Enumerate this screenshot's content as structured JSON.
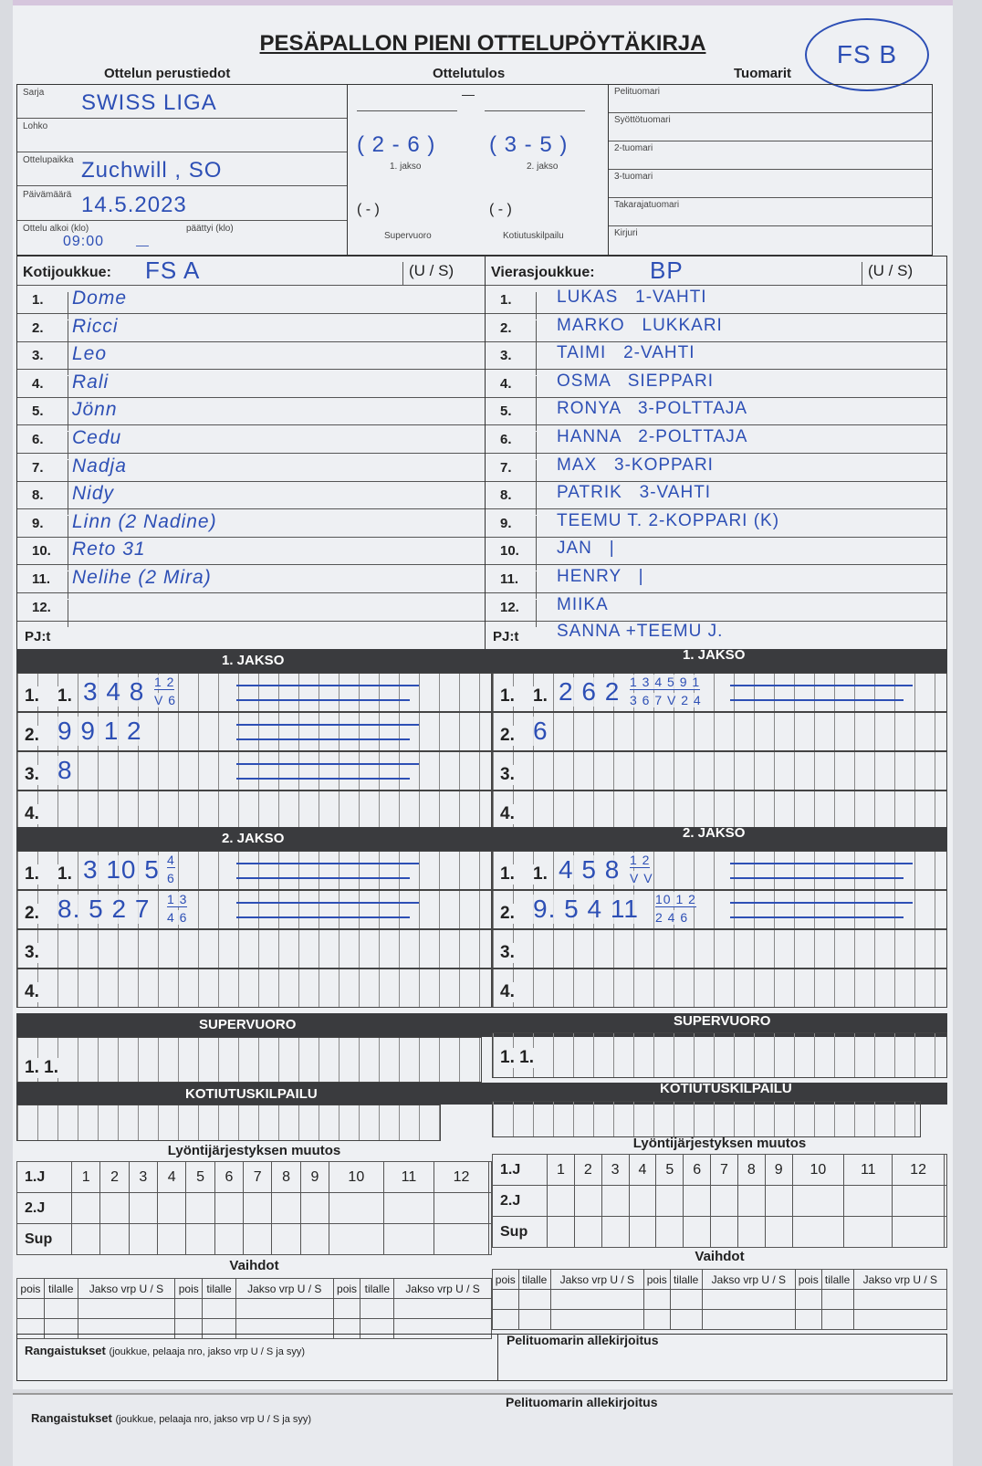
{
  "title": "PESÄPALLON PIENI OTTELUPÖYTÄKIRJA",
  "sections": {
    "basic": "Ottelun perustiedot",
    "result": "Ottelutulos",
    "referees": "Tuomarit"
  },
  "referee_team": "FS B",
  "basic_fields": [
    {
      "label": "Sarja",
      "value": "SWISS LIGA"
    },
    {
      "label": "Lohko",
      "value": ""
    },
    {
      "label": "Ottelupaikka",
      "value": "Zuchwill , SO"
    },
    {
      "label": "Päivämäärä",
      "value": "14.5.2023"
    },
    {
      "label": "Ottelu alkoi (klo)",
      "value": "09:00",
      "label2": "päättyi (klo)",
      "value2": "—"
    }
  ],
  "result": {
    "total": "—",
    "periods": [
      {
        "label": "1. jakso",
        "score": "( 2 - 6 )"
      },
      {
        "label": "2. jakso",
        "score": "( 3 - 5 )"
      }
    ],
    "extra": [
      {
        "label": "Supervuoro",
        "score": "(  -  )"
      },
      {
        "label": "Kotiutuskilpailu",
        "score": "(  -  )"
      }
    ]
  },
  "referee_fields": [
    "Pelituomari",
    "Syöttötuomari",
    "2-tuomari",
    "3-tuomari",
    "Takarajatuomari",
    "Kirjuri"
  ],
  "home": {
    "label": "Kotijoukkue:",
    "name": "FS A",
    "us": "(U / S)",
    "pj_label": "PJ:t",
    "pj": "",
    "players": [
      "Dome",
      "Ricci",
      "Leo",
      "Rali",
      "Jönn",
      "Cedu",
      "Nadja",
      "Nidy",
      "Linn (2 Nadine)",
      "Reto 31",
      "Nelihe (2 Mira)",
      ""
    ]
  },
  "away": {
    "label": "Vierasjoukkue:",
    "name": "BP",
    "us": "(U / S)",
    "pj_label": "PJ:t",
    "pj": "SANNA +TEEMU J.",
    "players": [
      "LUKAS   1-VAHTI",
      "MARKO   LUKKARI",
      "TAIMI   2-VAHTI",
      "OSMA   SIEPPARI",
      "RONYA   3-POLTTAJA",
      "HANNA   2-POLTTAJA",
      "MAX   3-KOPPARI",
      "PATRIK   3-VAHTI",
      "TEEMU T. 2-KOPPARI (K)",
      "JAN   |",
      "HENRY   |",
      "MIIKA"
    ]
  },
  "periods": [
    {
      "title": "1. JAKSO",
      "home": [
        {
          "n": "1.",
          "sub": "1.",
          "hw": "3 4 8",
          "top": "1 2",
          "bot": "V 6"
        },
        {
          "n": "2.",
          "sub": "",
          "hw": "9 9 1 2",
          "top": "",
          "bot": ""
        },
        {
          "n": "3.",
          "sub": "",
          "hw": "8",
          "top": "",
          "bot": ""
        },
        {
          "n": "4.",
          "sub": "",
          "hw": "",
          "top": "",
          "bot": ""
        }
      ],
      "away": [
        {
          "n": "1.",
          "sub": "1.",
          "hw": "2 6 2",
          "top": "1 3 4 5 9 1",
          "bot": "3 6 7 V 2 4"
        },
        {
          "n": "2.",
          "sub": "",
          "hw": "6",
          "top": "",
          "bot": ""
        },
        {
          "n": "3.",
          "sub": "",
          "hw": "",
          "top": "",
          "bot": ""
        },
        {
          "n": "4.",
          "sub": "",
          "hw": "",
          "top": "",
          "bot": ""
        }
      ]
    },
    {
      "title": "2. JAKSO",
      "home": [
        {
          "n": "1.",
          "sub": "1.",
          "hw": "3 10 5",
          "top": "4",
          "bot": "6"
        },
        {
          "n": "2.",
          "sub": "",
          "hw": "8. 5 2 7",
          "top": "1 3",
          "bot": "4 6"
        },
        {
          "n": "3.",
          "sub": "",
          "hw": "",
          "top": "",
          "bot": ""
        },
        {
          "n": "4.",
          "sub": "",
          "hw": "",
          "top": "",
          "bot": ""
        }
      ],
      "away": [
        {
          "n": "1.",
          "sub": "1.",
          "hw": "4 5 8",
          "top": "1 2",
          "bot": "V V"
        },
        {
          "n": "2.",
          "sub": "",
          "hw": "9. 5 4 11",
          "top": "10 1 2",
          "bot": "2 4 6"
        },
        {
          "n": "3.",
          "sub": "",
          "hw": "",
          "top": "",
          "bot": ""
        },
        {
          "n": "4.",
          "sub": "",
          "hw": "",
          "top": "",
          "bot": ""
        }
      ]
    }
  ],
  "supervuoro": {
    "title": "SUPERVUORO",
    "row": "1.  1."
  },
  "kotiutus": {
    "title": "KOTIUTUSKILPAILU"
  },
  "order_change": {
    "title": "Lyöntijärjestyksen muutos",
    "rows": [
      "1.J",
      "2.J",
      "Sup"
    ],
    "cols": [
      "1",
      "2",
      "3",
      "4",
      "5",
      "6",
      "7",
      "8",
      "9",
      "10",
      "11",
      "12"
    ]
  },
  "subs": {
    "title": "Vaihdot",
    "cols": [
      "pois",
      "tilalle",
      "Jakso vrp U / S",
      "pois",
      "tilalle",
      "Jakso vrp U / S",
      "pois",
      "tilalle",
      "Jakso vrp U / S"
    ]
  },
  "penalties": {
    "label": "Rangaistukset",
    "hint": "(joukkue, pelaaja nro, jakso vrp U / S ja syy)"
  },
  "signature": "Pelituomarin allekirjoitus",
  "colors": {
    "ink": "#2d4fb5",
    "header": "#3a3b3e",
    "paper": "#eef0f3"
  }
}
